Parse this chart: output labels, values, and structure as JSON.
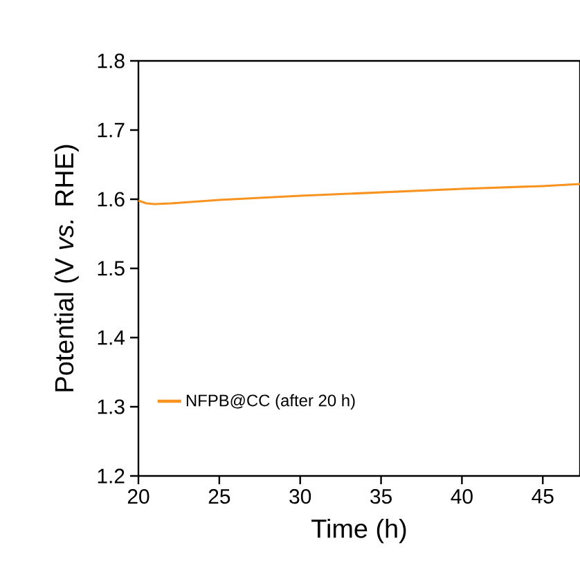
{
  "chart_data": {
    "type": "line",
    "xlabel": "Time (h)",
    "ylabel": "Potential (V *vs.* RHE)",
    "xlim": [
      20,
      47.3
    ],
    "ylim": [
      1.2,
      1.8
    ],
    "xticks": [
      20,
      25,
      30,
      35,
      40,
      45
    ],
    "yticks": [
      1.2,
      1.3,
      1.4,
      1.5,
      1.6,
      1.7,
      1.8
    ],
    "grid": false,
    "legend": "bottom left",
    "line_style": "solid",
    "series": [
      {
        "name": "NFPB@CC (after 20 h)",
        "color": "#f7931e",
        "x": [
          20,
          20.5,
          21,
          22,
          25,
          30,
          35,
          40,
          45,
          47.3
        ],
        "values": [
          1.598,
          1.594,
          1.593,
          1.594,
          1.599,
          1.605,
          1.61,
          1.615,
          1.619,
          1.622
        ]
      }
    ]
  }
}
